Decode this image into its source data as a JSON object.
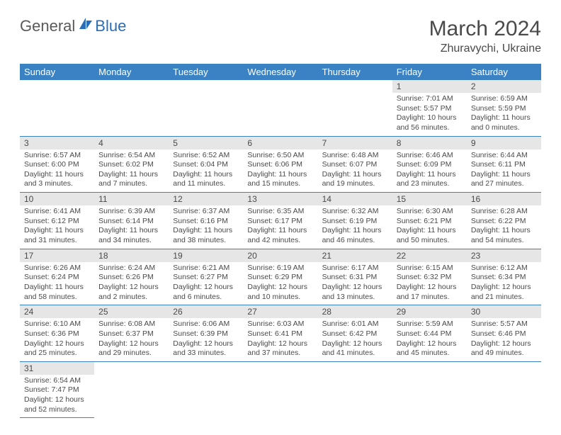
{
  "logo": {
    "general": "General",
    "blue": "Blue"
  },
  "title": "March 2024",
  "location": "Zhuravychi, Ukraine",
  "colors": {
    "header_bg": "#3b82c4",
    "header_text": "#ffffff",
    "daynum_bg": "#e6e6e6",
    "text": "#4a4a4a",
    "border": "#3b82c4"
  },
  "weekdays": [
    "Sunday",
    "Monday",
    "Tuesday",
    "Wednesday",
    "Thursday",
    "Friday",
    "Saturday"
  ],
  "cells": [
    [
      null,
      null,
      null,
      null,
      null,
      {
        "n": "1",
        "sr": "7:01 AM",
        "ss": "5:57 PM",
        "dl": "10 hours and 56 minutes."
      },
      {
        "n": "2",
        "sr": "6:59 AM",
        "ss": "5:59 PM",
        "dl": "11 hours and 0 minutes."
      }
    ],
    [
      {
        "n": "3",
        "sr": "6:57 AM",
        "ss": "6:00 PM",
        "dl": "11 hours and 3 minutes."
      },
      {
        "n": "4",
        "sr": "6:54 AM",
        "ss": "6:02 PM",
        "dl": "11 hours and 7 minutes."
      },
      {
        "n": "5",
        "sr": "6:52 AM",
        "ss": "6:04 PM",
        "dl": "11 hours and 11 minutes."
      },
      {
        "n": "6",
        "sr": "6:50 AM",
        "ss": "6:06 PM",
        "dl": "11 hours and 15 minutes."
      },
      {
        "n": "7",
        "sr": "6:48 AM",
        "ss": "6:07 PM",
        "dl": "11 hours and 19 minutes."
      },
      {
        "n": "8",
        "sr": "6:46 AM",
        "ss": "6:09 PM",
        "dl": "11 hours and 23 minutes."
      },
      {
        "n": "9",
        "sr": "6:44 AM",
        "ss": "6:11 PM",
        "dl": "11 hours and 27 minutes."
      }
    ],
    [
      {
        "n": "10",
        "sr": "6:41 AM",
        "ss": "6:12 PM",
        "dl": "11 hours and 31 minutes."
      },
      {
        "n": "11",
        "sr": "6:39 AM",
        "ss": "6:14 PM",
        "dl": "11 hours and 34 minutes."
      },
      {
        "n": "12",
        "sr": "6:37 AM",
        "ss": "6:16 PM",
        "dl": "11 hours and 38 minutes."
      },
      {
        "n": "13",
        "sr": "6:35 AM",
        "ss": "6:17 PM",
        "dl": "11 hours and 42 minutes."
      },
      {
        "n": "14",
        "sr": "6:32 AM",
        "ss": "6:19 PM",
        "dl": "11 hours and 46 minutes."
      },
      {
        "n": "15",
        "sr": "6:30 AM",
        "ss": "6:21 PM",
        "dl": "11 hours and 50 minutes."
      },
      {
        "n": "16",
        "sr": "6:28 AM",
        "ss": "6:22 PM",
        "dl": "11 hours and 54 minutes."
      }
    ],
    [
      {
        "n": "17",
        "sr": "6:26 AM",
        "ss": "6:24 PM",
        "dl": "11 hours and 58 minutes."
      },
      {
        "n": "18",
        "sr": "6:24 AM",
        "ss": "6:26 PM",
        "dl": "12 hours and 2 minutes."
      },
      {
        "n": "19",
        "sr": "6:21 AM",
        "ss": "6:27 PM",
        "dl": "12 hours and 6 minutes."
      },
      {
        "n": "20",
        "sr": "6:19 AM",
        "ss": "6:29 PM",
        "dl": "12 hours and 10 minutes."
      },
      {
        "n": "21",
        "sr": "6:17 AM",
        "ss": "6:31 PM",
        "dl": "12 hours and 13 minutes."
      },
      {
        "n": "22",
        "sr": "6:15 AM",
        "ss": "6:32 PM",
        "dl": "12 hours and 17 minutes."
      },
      {
        "n": "23",
        "sr": "6:12 AM",
        "ss": "6:34 PM",
        "dl": "12 hours and 21 minutes."
      }
    ],
    [
      {
        "n": "24",
        "sr": "6:10 AM",
        "ss": "6:36 PM",
        "dl": "12 hours and 25 minutes."
      },
      {
        "n": "25",
        "sr": "6:08 AM",
        "ss": "6:37 PM",
        "dl": "12 hours and 29 minutes."
      },
      {
        "n": "26",
        "sr": "6:06 AM",
        "ss": "6:39 PM",
        "dl": "12 hours and 33 minutes."
      },
      {
        "n": "27",
        "sr": "6:03 AM",
        "ss": "6:41 PM",
        "dl": "12 hours and 37 minutes."
      },
      {
        "n": "28",
        "sr": "6:01 AM",
        "ss": "6:42 PM",
        "dl": "12 hours and 41 minutes."
      },
      {
        "n": "29",
        "sr": "5:59 AM",
        "ss": "6:44 PM",
        "dl": "12 hours and 45 minutes."
      },
      {
        "n": "30",
        "sr": "5:57 AM",
        "ss": "6:46 PM",
        "dl": "12 hours and 49 minutes."
      }
    ],
    [
      {
        "n": "31",
        "sr": "6:54 AM",
        "ss": "7:47 PM",
        "dl": "12 hours and 52 minutes."
      },
      null,
      null,
      null,
      null,
      null,
      null
    ]
  ],
  "labels": {
    "sunrise": "Sunrise:",
    "sunset": "Sunset:",
    "daylight": "Daylight:"
  }
}
